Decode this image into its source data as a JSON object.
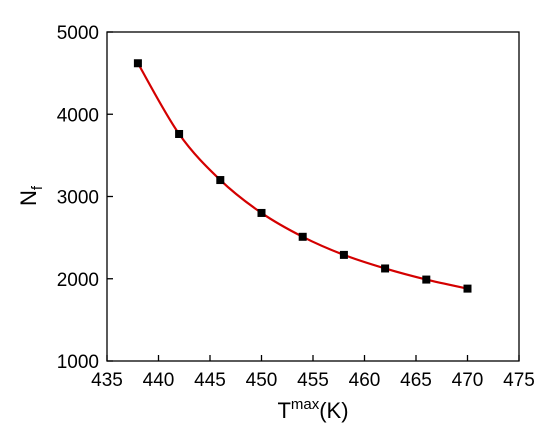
{
  "chart_data": {
    "type": "line",
    "x_label": {
      "text": "T",
      "superscript": "max",
      "suffix": "(K)"
    },
    "y_label": {
      "text": "N",
      "subscript": "f"
    },
    "x": [
      438,
      442,
      446,
      450,
      454,
      458,
      462,
      466,
      470
    ],
    "series": [
      {
        "color": "#d40000",
        "marker_color": "#000000",
        "values": [
          4620,
          3760,
          3200,
          2800,
          2510,
          2290,
          2125,
          1990,
          1880
        ]
      }
    ],
    "xlim": [
      435,
      475
    ],
    "xticks": [
      435,
      440,
      445,
      450,
      455,
      460,
      465,
      470,
      475
    ],
    "ylim": [
      1000,
      5000
    ],
    "yticks": [
      1000,
      2000,
      3000,
      4000,
      5000
    ]
  }
}
